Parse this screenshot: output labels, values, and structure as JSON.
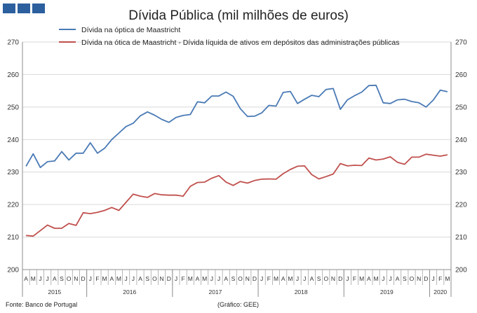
{
  "chart_data": {
    "type": "line",
    "title": "Dívida Pública (mil milhões de euros)",
    "xlabel": "",
    "ylabel": "",
    "ylim": [
      200,
      270
    ],
    "yticks": [
      200,
      210,
      220,
      230,
      240,
      250,
      260,
      270
    ],
    "grid": true,
    "legend_position": "top",
    "months": [
      "A",
      "M",
      "J",
      "J",
      "A",
      "S",
      "O",
      "N",
      "D",
      "J",
      "F",
      "M",
      "A",
      "M",
      "J",
      "J",
      "A",
      "S",
      "O",
      "N",
      "D",
      "J",
      "F",
      "M",
      "A",
      "M",
      "J",
      "J",
      "A",
      "S",
      "O",
      "N",
      "D",
      "J",
      "F",
      "M",
      "A",
      "M",
      "J",
      "J",
      "A",
      "S",
      "O",
      "N",
      "D",
      "J",
      "F",
      "M",
      "A",
      "M",
      "J",
      "J",
      "A",
      "S",
      "O",
      "N",
      "D",
      "J",
      "F",
      "M"
    ],
    "years": [
      {
        "label": "2015",
        "start": 0,
        "count": 9
      },
      {
        "label": "2016",
        "start": 9,
        "count": 12
      },
      {
        "label": "2017",
        "start": 21,
        "count": 12
      },
      {
        "label": "2018",
        "start": 33,
        "count": 12
      },
      {
        "label": "2019",
        "start": 45,
        "count": 12
      },
      {
        "label": "2020",
        "start": 57,
        "count": 3
      }
    ],
    "series": [
      {
        "name": "Dívida na óptica de Maastricht",
        "color": "#4a7ab5",
        "values": [
          231.8,
          235.6,
          231.4,
          233.2,
          233.4,
          236.3,
          233.7,
          235.8,
          235.8,
          239.0,
          235.8,
          237.3,
          240.0,
          242.0,
          244.0,
          245.0,
          247.3,
          248.5,
          247.5,
          246.2,
          245.3,
          246.8,
          247.4,
          247.7,
          251.6,
          251.3,
          253.4,
          253.4,
          254.6,
          253.3,
          249.5,
          247.1,
          247.2,
          248.2,
          250.5,
          250.3,
          254.5,
          254.8,
          251.1,
          252.4,
          253.6,
          253.2,
          255.4,
          255.7,
          249.3,
          252.2,
          253.5,
          254.6,
          256.6,
          256.7,
          251.3,
          251.1,
          252.2,
          252.4,
          251.7,
          251.3,
          250.0,
          252.1,
          255.2,
          254.7
        ]
      },
      {
        "name": "Dívida na ótica de Maastricht - Dívida líquida de ativos em depósitos das administrações públicas",
        "color": "#c0504d",
        "values": [
          210.5,
          210.3,
          212.0,
          213.7,
          212.7,
          212.7,
          214.2,
          213.6,
          217.5,
          217.2,
          217.6,
          218.2,
          219.1,
          218.2,
          220.7,
          223.2,
          222.6,
          222.2,
          223.4,
          223.0,
          222.9,
          222.9,
          222.6,
          225.6,
          226.8,
          226.9,
          228.1,
          228.9,
          226.9,
          225.9,
          227.1,
          226.6,
          227.4,
          227.8,
          227.9,
          227.8,
          229.5,
          230.8,
          231.8,
          231.9,
          229.2,
          227.9,
          228.6,
          229.4,
          232.6,
          231.9,
          232.1,
          232.0,
          234.3,
          233.7,
          234.0,
          234.7,
          233.0,
          232.4,
          234.6,
          234.6,
          235.5,
          235.2,
          234.9,
          235.3
        ]
      }
    ]
  },
  "footer": {
    "source": "Fonte: Banco de Portugal",
    "credit": "(Gráfico: GEE)"
  }
}
